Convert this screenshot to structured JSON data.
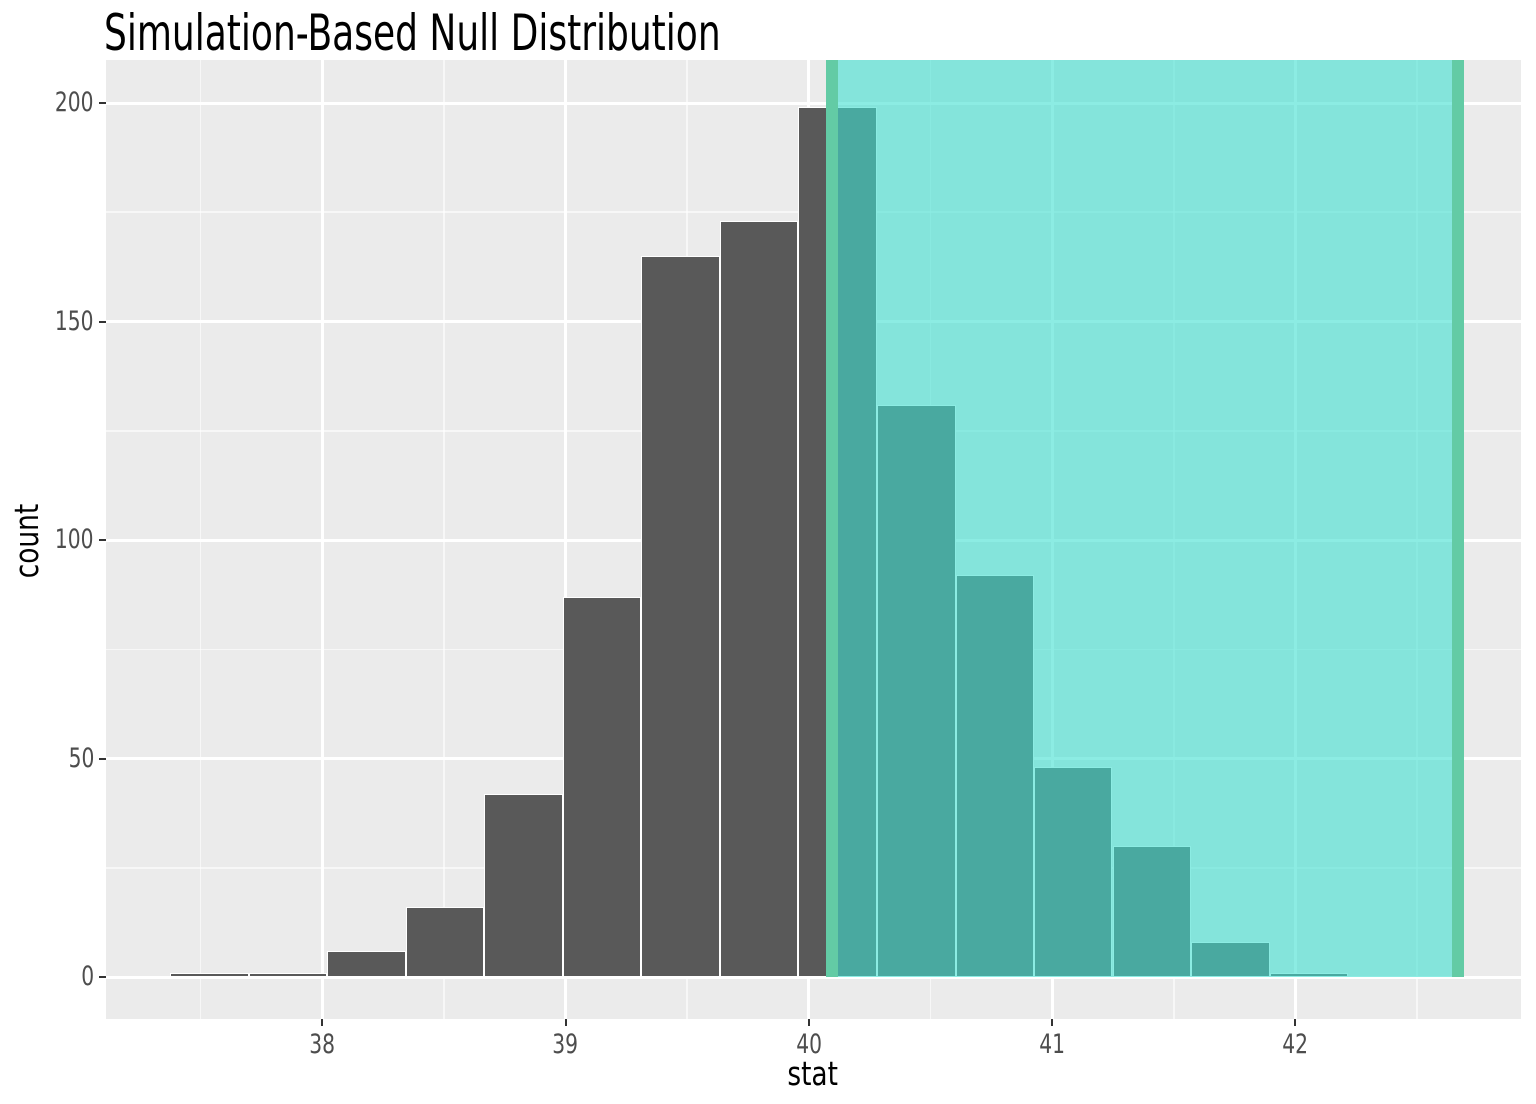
{
  "figure": {
    "title": "Simulation-Based Null Distribution"
  },
  "chart_data": {
    "type": "bar",
    "subtype": "histogram",
    "title": "Simulation-Based Null Distribution",
    "xlabel": "stat",
    "ylabel": "count",
    "x_range": [
      37.111,
      42.927
    ],
    "y_range": [
      -9.54,
      209.84
    ],
    "x_ticks": [
      38,
      39,
      40,
      41,
      42
    ],
    "x_minor_ticks": [
      37.5,
      38.5,
      39.5,
      40.5,
      41.5,
      42.5
    ],
    "y_ticks": [
      0,
      50,
      100,
      150,
      200
    ],
    "y_minor_ticks": [
      25,
      75,
      125,
      175
    ],
    "grid": true,
    "legend": false,
    "bin_edges": [
      37.374,
      37.697,
      38.02,
      38.343,
      38.666,
      38.989,
      39.311,
      39.634,
      39.957,
      40.28,
      40.603,
      40.926,
      41.248,
      41.571,
      41.894,
      42.217
    ],
    "counts": [
      1,
      1,
      6,
      16,
      42,
      87,
      165,
      173,
      199,
      131,
      92,
      48,
      30,
      8,
      1
    ],
    "total_replicates": 1000,
    "shade_region": {
      "from": 40.097,
      "to": 42.666
    },
    "shade_lines": [
      40.097,
      42.666
    ],
    "colors": {
      "panel_background": "#EBEBEB",
      "grid": "#FFFFFF",
      "bar_fill": "#595959",
      "bar_stroke": "#FFFFFF",
      "shade_fill_rgba": "rgba(64,224,208,0.6)",
      "shade_line": "#63CBA5",
      "tick_mark": "#333333",
      "tick_label": "#4D4D4D",
      "text": "#000000"
    }
  }
}
